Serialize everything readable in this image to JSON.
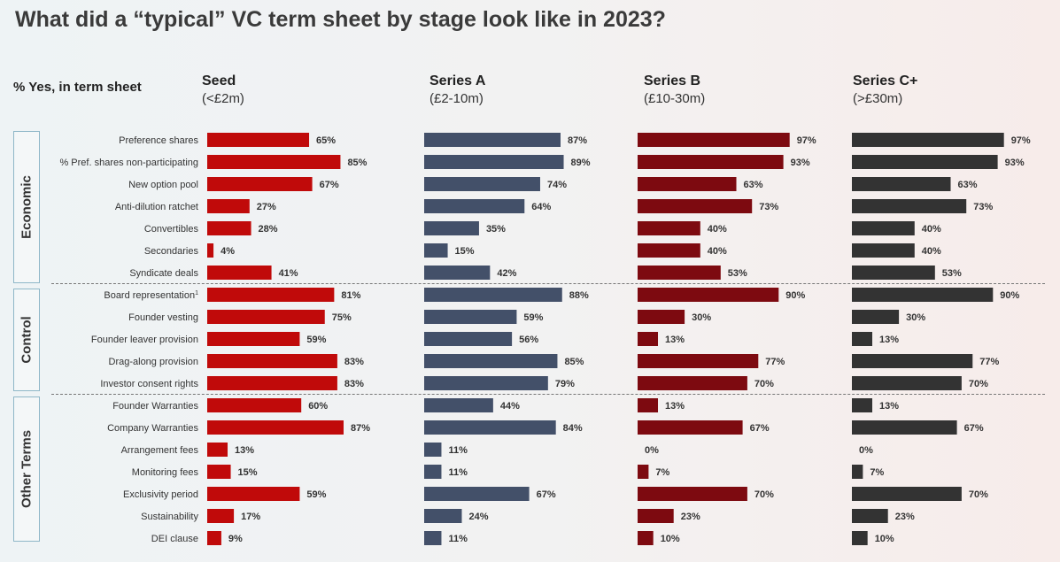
{
  "chart_data": {
    "type": "bar",
    "title": "What did a “typical” VC term sheet by stage look like in 2023?",
    "ylabel": "% Yes, in term sheet",
    "categories": [
      "Preference shares",
      "% Pref. shares non-participating",
      "New option pool",
      "Anti-dilution ratchet",
      "Convertibles",
      "Secondaries",
      "Syndicate deals",
      "Board representation",
      "Founder vesting",
      "Founder leaver provision",
      "Drag-along provision",
      "Investor consent rights",
      "Founder Warranties",
      "Company Warranties",
      "Arrangement fees",
      "Monitoring fees",
      "Exclusivity period",
      "Sustainability",
      "DEI clause"
    ],
    "category_superscripts": {
      "Board representation": "1"
    },
    "groups": [
      {
        "label": "Economic",
        "count": 7
      },
      {
        "label": "Control",
        "count": 5
      },
      {
        "label": "Other Terms",
        "count": 7
      }
    ],
    "series": [
      {
        "name": "Seed",
        "sub": "(<£2m)",
        "color": "#c00a0a",
        "values": [
          65,
          85,
          67,
          27,
          28,
          4,
          41,
          81,
          75,
          59,
          83,
          83,
          60,
          87,
          13,
          15,
          59,
          17,
          9
        ]
      },
      {
        "name": "Series A",
        "sub": "(£2-10m)",
        "color": "#435069",
        "values": [
          87,
          89,
          74,
          64,
          35,
          15,
          42,
          88,
          59,
          56,
          85,
          79,
          44,
          84,
          11,
          11,
          67,
          24,
          11
        ]
      },
      {
        "name": "Series B",
        "sub": "(£10-30m)",
        "color": "#7d0a10",
        "values": [
          97,
          93,
          63,
          73,
          40,
          40,
          53,
          90,
          30,
          13,
          77,
          70,
          13,
          67,
          0,
          7,
          70,
          23,
          10
        ]
      },
      {
        "name": "Series C+",
        "sub": "(>£30m)",
        "color": "#333333",
        "values": [
          97,
          93,
          63,
          73,
          40,
          40,
          53,
          90,
          30,
          13,
          77,
          70,
          13,
          67,
          0,
          7,
          70,
          23,
          10
        ]
      }
    ],
    "value_suffix": "%",
    "xlim": [
      0,
      100
    ]
  }
}
